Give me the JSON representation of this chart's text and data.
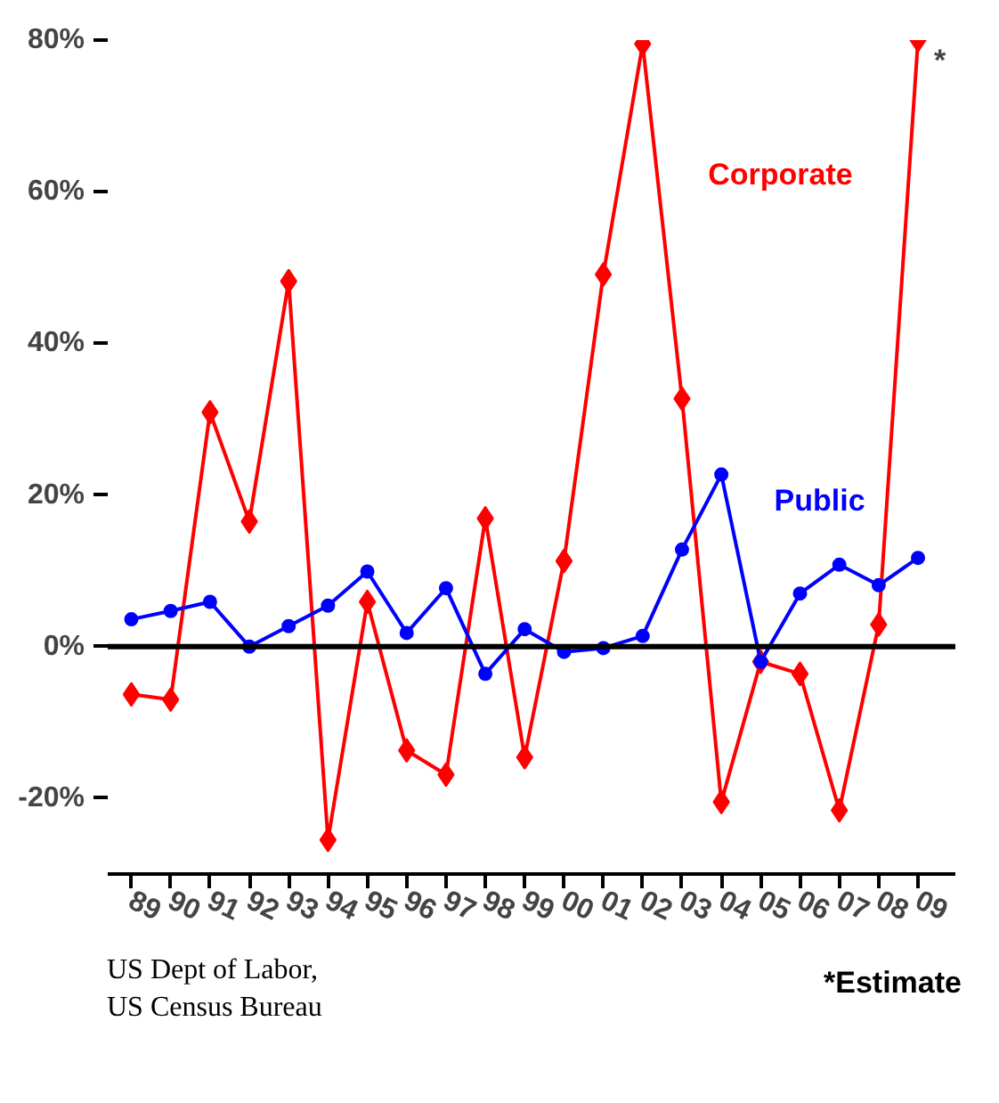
{
  "chart_data": {
    "type": "line",
    "categories": [
      "89",
      "90",
      "91",
      "92",
      "93",
      "94",
      "95",
      "96",
      "97",
      "98",
      "99",
      "00",
      "01",
      "02",
      "03",
      "04",
      "05",
      "06",
      "07",
      "08",
      "09"
    ],
    "series": [
      {
        "name": "Corporate",
        "color": "#ff0000",
        "marker": "diamond",
        "values": [
          -6.3,
          -7,
          30.9,
          16.5,
          48.2,
          -25.5,
          5.9,
          -13.7,
          -16.9,
          16.9,
          -14.6,
          11.3,
          49.1,
          79.5,
          32.7,
          -20.5,
          -2,
          -3.6,
          -21.6,
          2.9,
          80
        ]
      },
      {
        "name": "Public",
        "color": "#0000ff",
        "marker": "circle",
        "values": [
          3.6,
          4.7,
          5.9,
          0,
          2.7,
          5.4,
          9.9,
          1.8,
          7.7,
          -3.6,
          2.3,
          -0.7,
          -0.2,
          1.4,
          12.8,
          22.7,
          -2,
          7,
          10.8,
          8.1,
          11.7
        ]
      }
    ],
    "ylim": [
      -30,
      80
    ],
    "yticks": [
      {
        "value": -20,
        "label": "-20%"
      },
      {
        "value": 0,
        "label": "0%"
      },
      {
        "value": 20,
        "label": "20%"
      },
      {
        "value": 40,
        "label": "40%"
      },
      {
        "value": 60,
        "label": "60%"
      },
      {
        "value": 80,
        "label": "80%"
      }
    ],
    "ref_lines": [
      {
        "axis": "y",
        "value": 0,
        "color": "#000000"
      }
    ],
    "annotations": [
      {
        "text": "*",
        "x": "09",
        "y": 80
      },
      "*Estimate",
      "US Dept of Labor,\nUS Census Bureau"
    ],
    "grid": false
  }
}
